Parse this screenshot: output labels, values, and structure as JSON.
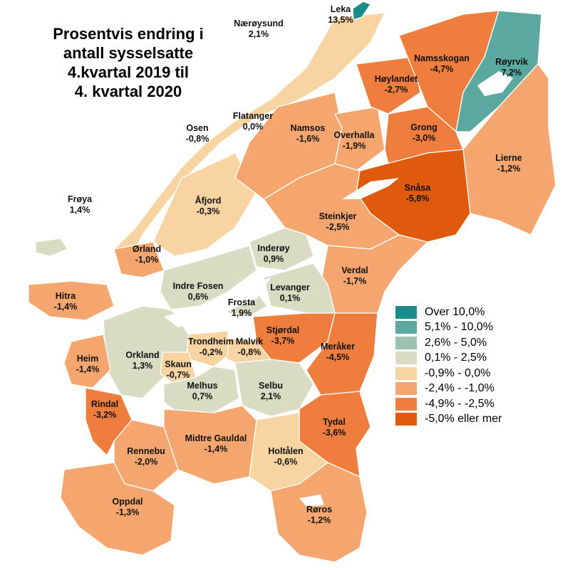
{
  "title": [
    "Prosentvis endring i",
    "antall sysselsatte",
    "4.kvartal 2019 til",
    "4. kvartal 2020"
  ],
  "legend": [
    {
      "label": "Over 10,0%",
      "color": "#1a8c8c"
    },
    {
      "label": "5,1% - 10,0%",
      "color": "#5ba8a0"
    },
    {
      "label": "2,6% - 5,0%",
      "color": "#9cc2b1"
    },
    {
      "label": "0,1% - 2,5%",
      "color": "#d9dcc2"
    },
    {
      "label": "-0,9% - 0,0%",
      "color": "#f8d4a3"
    },
    {
      "label": "-2,4% - -1,0%",
      "color": "#f5a66e"
    },
    {
      "label": "-4,9% - -2,5%",
      "color": "#ee7d3e"
    },
    {
      "label": "-5,0% eller mer",
      "color": "#e05a0e"
    }
  ],
  "municipalities": [
    {
      "name": "Leka",
      "value": "13,5%"
    },
    {
      "name": "Nærøysund",
      "value": "2,1%"
    },
    {
      "name": "Namsskogan",
      "value": "-4,7%"
    },
    {
      "name": "Røyrvik",
      "value": "7,2%"
    },
    {
      "name": "Høylandet",
      "value": "-2,7%"
    },
    {
      "name": "Flatanger",
      "value": "0,0%"
    },
    {
      "name": "Osen",
      "value": "-0,8%"
    },
    {
      "name": "Namsos",
      "value": "-1,6%"
    },
    {
      "name": "Overhalla",
      "value": "-1,9%"
    },
    {
      "name": "Grong",
      "value": "-3,0%"
    },
    {
      "name": "Lierne",
      "value": "-1,2%"
    },
    {
      "name": "Snåsa",
      "value": "-5,8%"
    },
    {
      "name": "Frøya",
      "value": "1,4%"
    },
    {
      "name": "Åfjord",
      "value": "-0,3%"
    },
    {
      "name": "Steinkjer",
      "value": "-2,5%"
    },
    {
      "name": "Ørland",
      "value": "-1,0%"
    },
    {
      "name": "Inderøy",
      "value": "0,9%"
    },
    {
      "name": "Verdal",
      "value": "-1,7%"
    },
    {
      "name": "Indre Fosen",
      "value": "0,6%"
    },
    {
      "name": "Levanger",
      "value": "0,1%"
    },
    {
      "name": "Hitra",
      "value": "-1,4%"
    },
    {
      "name": "Frosta",
      "value": "1,9%"
    },
    {
      "name": "Stjørdal",
      "value": "-3,7%"
    },
    {
      "name": "Trondheim",
      "value": "-0,2%"
    },
    {
      "name": "Malvik",
      "value": "-0,8%"
    },
    {
      "name": "Meråker",
      "value": "-4,5%"
    },
    {
      "name": "Orkland",
      "value": "1,3%"
    },
    {
      "name": "Heim",
      "value": "-1,4%"
    },
    {
      "name": "Skaun",
      "value": "-0,7%"
    },
    {
      "name": "Melhus",
      "value": "0,7%"
    },
    {
      "name": "Selbu",
      "value": "2,1%"
    },
    {
      "name": "Rindal",
      "value": "-3,2%"
    },
    {
      "name": "Tydal",
      "value": "-3,6%"
    },
    {
      "name": "Rennebu",
      "value": "-2,0%"
    },
    {
      "name": "Midtre Gauldal",
      "value": "-1,4%"
    },
    {
      "name": "Holtålen",
      "value": "-0,6%"
    },
    {
      "name": "Oppdal",
      "value": "-1,3%"
    },
    {
      "name": "Røros",
      "value": "-1,2%"
    }
  ]
}
